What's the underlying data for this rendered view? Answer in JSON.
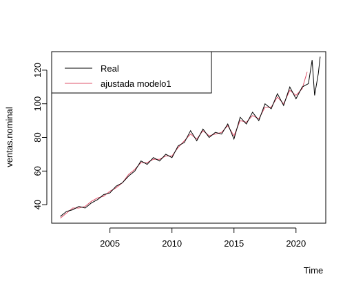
{
  "chart_data": {
    "type": "line",
    "xlabel": "Time",
    "ylabel": "ventas.nominal",
    "xlim": [
      2000.3,
      2022.4
    ],
    "ylim": [
      29,
      131
    ],
    "x_ticks": [
      2005,
      2010,
      2015,
      2020
    ],
    "y_ticks": [
      40,
      60,
      80,
      100,
      120
    ],
    "legend_position": "top-left",
    "series": [
      {
        "name": "Real",
        "color": "#000000",
        "x": [
          2001.0,
          2001.5,
          2002.0,
          2002.5,
          2003.0,
          2003.5,
          2004.0,
          2004.5,
          2005.0,
          2005.5,
          2006.0,
          2006.5,
          2007.0,
          2007.5,
          2008.0,
          2008.5,
          2009.0,
          2009.5,
          2010.0,
          2010.5,
          2011.0,
          2011.5,
          2012.0,
          2012.5,
          2013.0,
          2013.5,
          2014.0,
          2014.5,
          2015.0,
          2015.5,
          2016.0,
          2016.5,
          2017.0,
          2017.5,
          2018.0,
          2018.5,
          2019.0,
          2019.5,
          2020.0,
          2020.5,
          2021.0,
          2021.3,
          2021.5,
          2021.8,
          2021.95
        ],
        "y": [
          33,
          36,
          37,
          39,
          38,
          41,
          43,
          46,
          47,
          51,
          53,
          57,
          60,
          66,
          64,
          68,
          66,
          70,
          68,
          75,
          77,
          84,
          78,
          85,
          80,
          83,
          82,
          88,
          79,
          92,
          88,
          95,
          90,
          100,
          97,
          106,
          99,
          110,
          103,
          110,
          112,
          126,
          105,
          118,
          128
        ]
      },
      {
        "name": "ajustada modelo1",
        "color": "#df536b",
        "x": [
          2001.0,
          2001.5,
          2002.0,
          2002.5,
          2003.0,
          2003.5,
          2004.0,
          2004.5,
          2005.0,
          2005.5,
          2006.0,
          2006.5,
          2007.0,
          2007.5,
          2008.0,
          2008.5,
          2009.0,
          2009.5,
          2010.0,
          2010.5,
          2011.0,
          2011.5,
          2012.0,
          2012.5,
          2013.0,
          2013.5,
          2014.0,
          2014.5,
          2015.0,
          2015.5,
          2016.0,
          2016.5,
          2017.0,
          2017.5,
          2018.0,
          2018.5,
          2019.0,
          2019.5,
          2020.0,
          2020.5,
          2020.9
        ],
        "y": [
          32,
          35,
          38,
          38,
          39,
          42,
          44,
          45,
          48,
          50,
          53,
          58,
          61,
          65,
          65,
          67,
          67,
          69,
          69,
          74,
          78,
          82,
          79,
          84,
          81,
          82,
          83,
          87,
          81,
          90,
          89,
          93,
          91,
          98,
          98,
          104,
          100,
          108,
          105,
          109,
          119
        ]
      }
    ]
  }
}
